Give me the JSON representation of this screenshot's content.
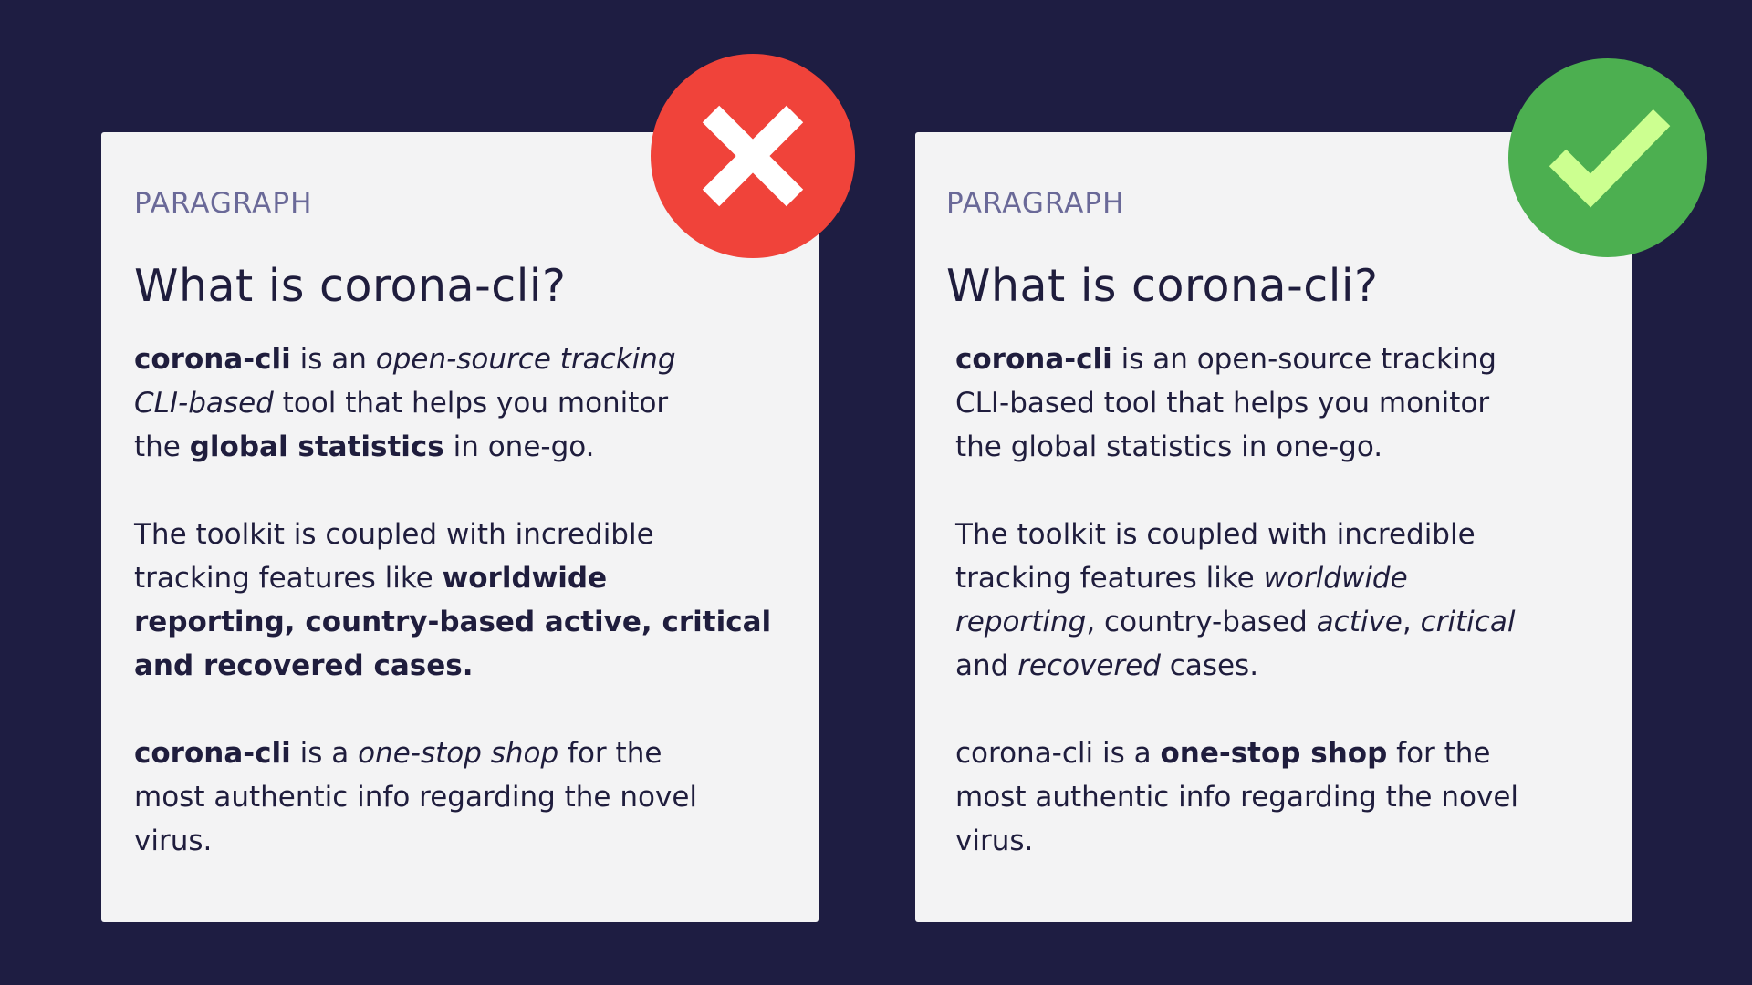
{
  "colors": {
    "background": "#1e1d42",
    "card": "#f3f3f4",
    "text": "#1f1d3d",
    "label": "#6a6998",
    "bad_badge": "#f0433a",
    "good_badge": "#4caf50",
    "check_mark": "#ccff90"
  },
  "left_card": {
    "label": "PARAGRAPH",
    "title": "What is corona-cli?",
    "badge_icon": "close-icon",
    "p1": {
      "l1a": "corona-cli",
      "l1b": " is an ",
      "l1c": "open-source tracking",
      "l2a": "CLI-based",
      "l2b": " tool that helps you monitor",
      "l3a": "the ",
      "l3b": "global statistics",
      "l3c": " in one-go."
    },
    "p2": {
      "l1": "The toolkit is coupled with incredible",
      "l2a": "tracking features like ",
      "l2b": "worldwide",
      "l3": "reporting, country-based active, critical",
      "l4": "and recovered cases."
    },
    "p3": {
      "l1a": "corona-cli",
      "l1b": " is a ",
      "l1c": "one-stop shop",
      "l1d": " for the",
      "l2": "most authentic info regarding the novel",
      "l3": "virus."
    }
  },
  "right_card": {
    "label": "PARAGRAPH",
    "title": "What is corona-cli?",
    "badge_icon": "check-icon",
    "p1": {
      "l1a": "corona-cli",
      "l1b": " is an open-source tracking",
      "l2": "CLI-based tool that helps you monitor",
      "l3": "the global statistics in one-go."
    },
    "p2": {
      "l1": "The toolkit is coupled with incredible",
      "l2a": "tracking features like ",
      "l2b": "worldwide",
      "l3a": "reporting",
      "l3b": ", country-based ",
      "l3c": "active",
      "l3d": ", ",
      "l3e": "critical",
      "l4a": "and ",
      "l4b": "recovered",
      "l4c": " cases."
    },
    "p3": {
      "l1a": "corona-cli is a ",
      "l1b": "one-stop shop",
      "l1c": " for the",
      "l2": "most authentic info regarding the novel",
      "l3": "virus."
    }
  }
}
